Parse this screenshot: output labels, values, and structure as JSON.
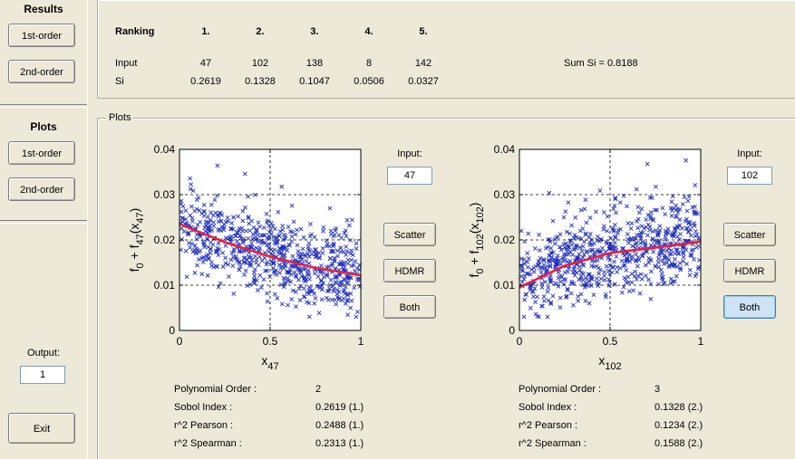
{
  "sidebar": {
    "results_heading": "Results",
    "results_first": "1st-order",
    "results_second": "2nd-order",
    "plots_heading": "Plots",
    "plots_first": "1st-order",
    "plots_second": "2nd-order",
    "output_label": "Output:",
    "output_value": "1",
    "exit": "Exit"
  },
  "ranking": {
    "header": "Ranking",
    "ranks": [
      "1.",
      "2.",
      "3.",
      "4.",
      "5."
    ],
    "input_label": "Input",
    "inputs": [
      "47",
      "102",
      "138",
      "8",
      "142"
    ],
    "si_label": "Si",
    "si": [
      "0.2619",
      "0.1328",
      "0.1047",
      "0.0506",
      "0.0327"
    ],
    "sum": "Sum Si = 0.8188"
  },
  "plots_panel": {
    "title": "Plots"
  },
  "left_plot": {
    "input_label": "Input:",
    "input_value": "47",
    "scatter": "Scatter",
    "hdmr": "HDMR",
    "both": "Both",
    "stats": [
      {
        "label": "Polynomial Order :",
        "value": "2"
      },
      {
        "label": "Sobol Index :",
        "value": "0.2619 (1.)"
      },
      {
        "label": "r^2 Pearson :",
        "value": "0.2488 (1.)"
      },
      {
        "label": "r^2 Spearman :",
        "value": "0.2313 (1.)"
      }
    ]
  },
  "right_plot": {
    "input_label": "Input:",
    "input_value": "102",
    "scatter": "Scatter",
    "hdmr": "HDMR",
    "both": "Both",
    "stats": [
      {
        "label": "Polynomial Order :",
        "value": "3"
      },
      {
        "label": "Sobol Index :",
        "value": "0.1328 (2.)"
      },
      {
        "label": "r^2 Pearson :",
        "value": "0.1234 (2.)"
      },
      {
        "label": "r^2 Spearman :",
        "value": "0.1588 (2.)"
      }
    ]
  },
  "colors": {
    "scatter": "#1f2fbf",
    "curve": "#e8203a",
    "both_selected": "#cfe3f7"
  },
  "chart_data": [
    {
      "type": "scatter",
      "x_index": "47",
      "xlim": [
        0,
        1
      ],
      "ylim": [
        0,
        0.04
      ],
      "xticks": [
        "0",
        "0.5",
        "1"
      ],
      "yticks": [
        "0",
        "0.01",
        "0.02",
        "0.03",
        "0.04"
      ],
      "grid": true,
      "trend": "decreasing",
      "curve": {
        "x": [
          0,
          0.25,
          0.5,
          0.75,
          1
        ],
        "y": [
          0.0235,
          0.0195,
          0.0163,
          0.0138,
          0.0122
        ]
      }
    },
    {
      "type": "scatter",
      "x_index": "102",
      "xlim": [
        0,
        1
      ],
      "ylim": [
        0,
        0.04
      ],
      "xticks": [
        "0",
        "0.5",
        "1"
      ],
      "yticks": [
        "0",
        "0.01",
        "0.02",
        "0.03",
        "0.04"
      ],
      "grid": true,
      "trend": "increasing",
      "curve": {
        "x": [
          0,
          0.25,
          0.5,
          0.75,
          1
        ],
        "y": [
          0.0095,
          0.0143,
          0.0171,
          0.0183,
          0.0196
        ]
      }
    }
  ]
}
